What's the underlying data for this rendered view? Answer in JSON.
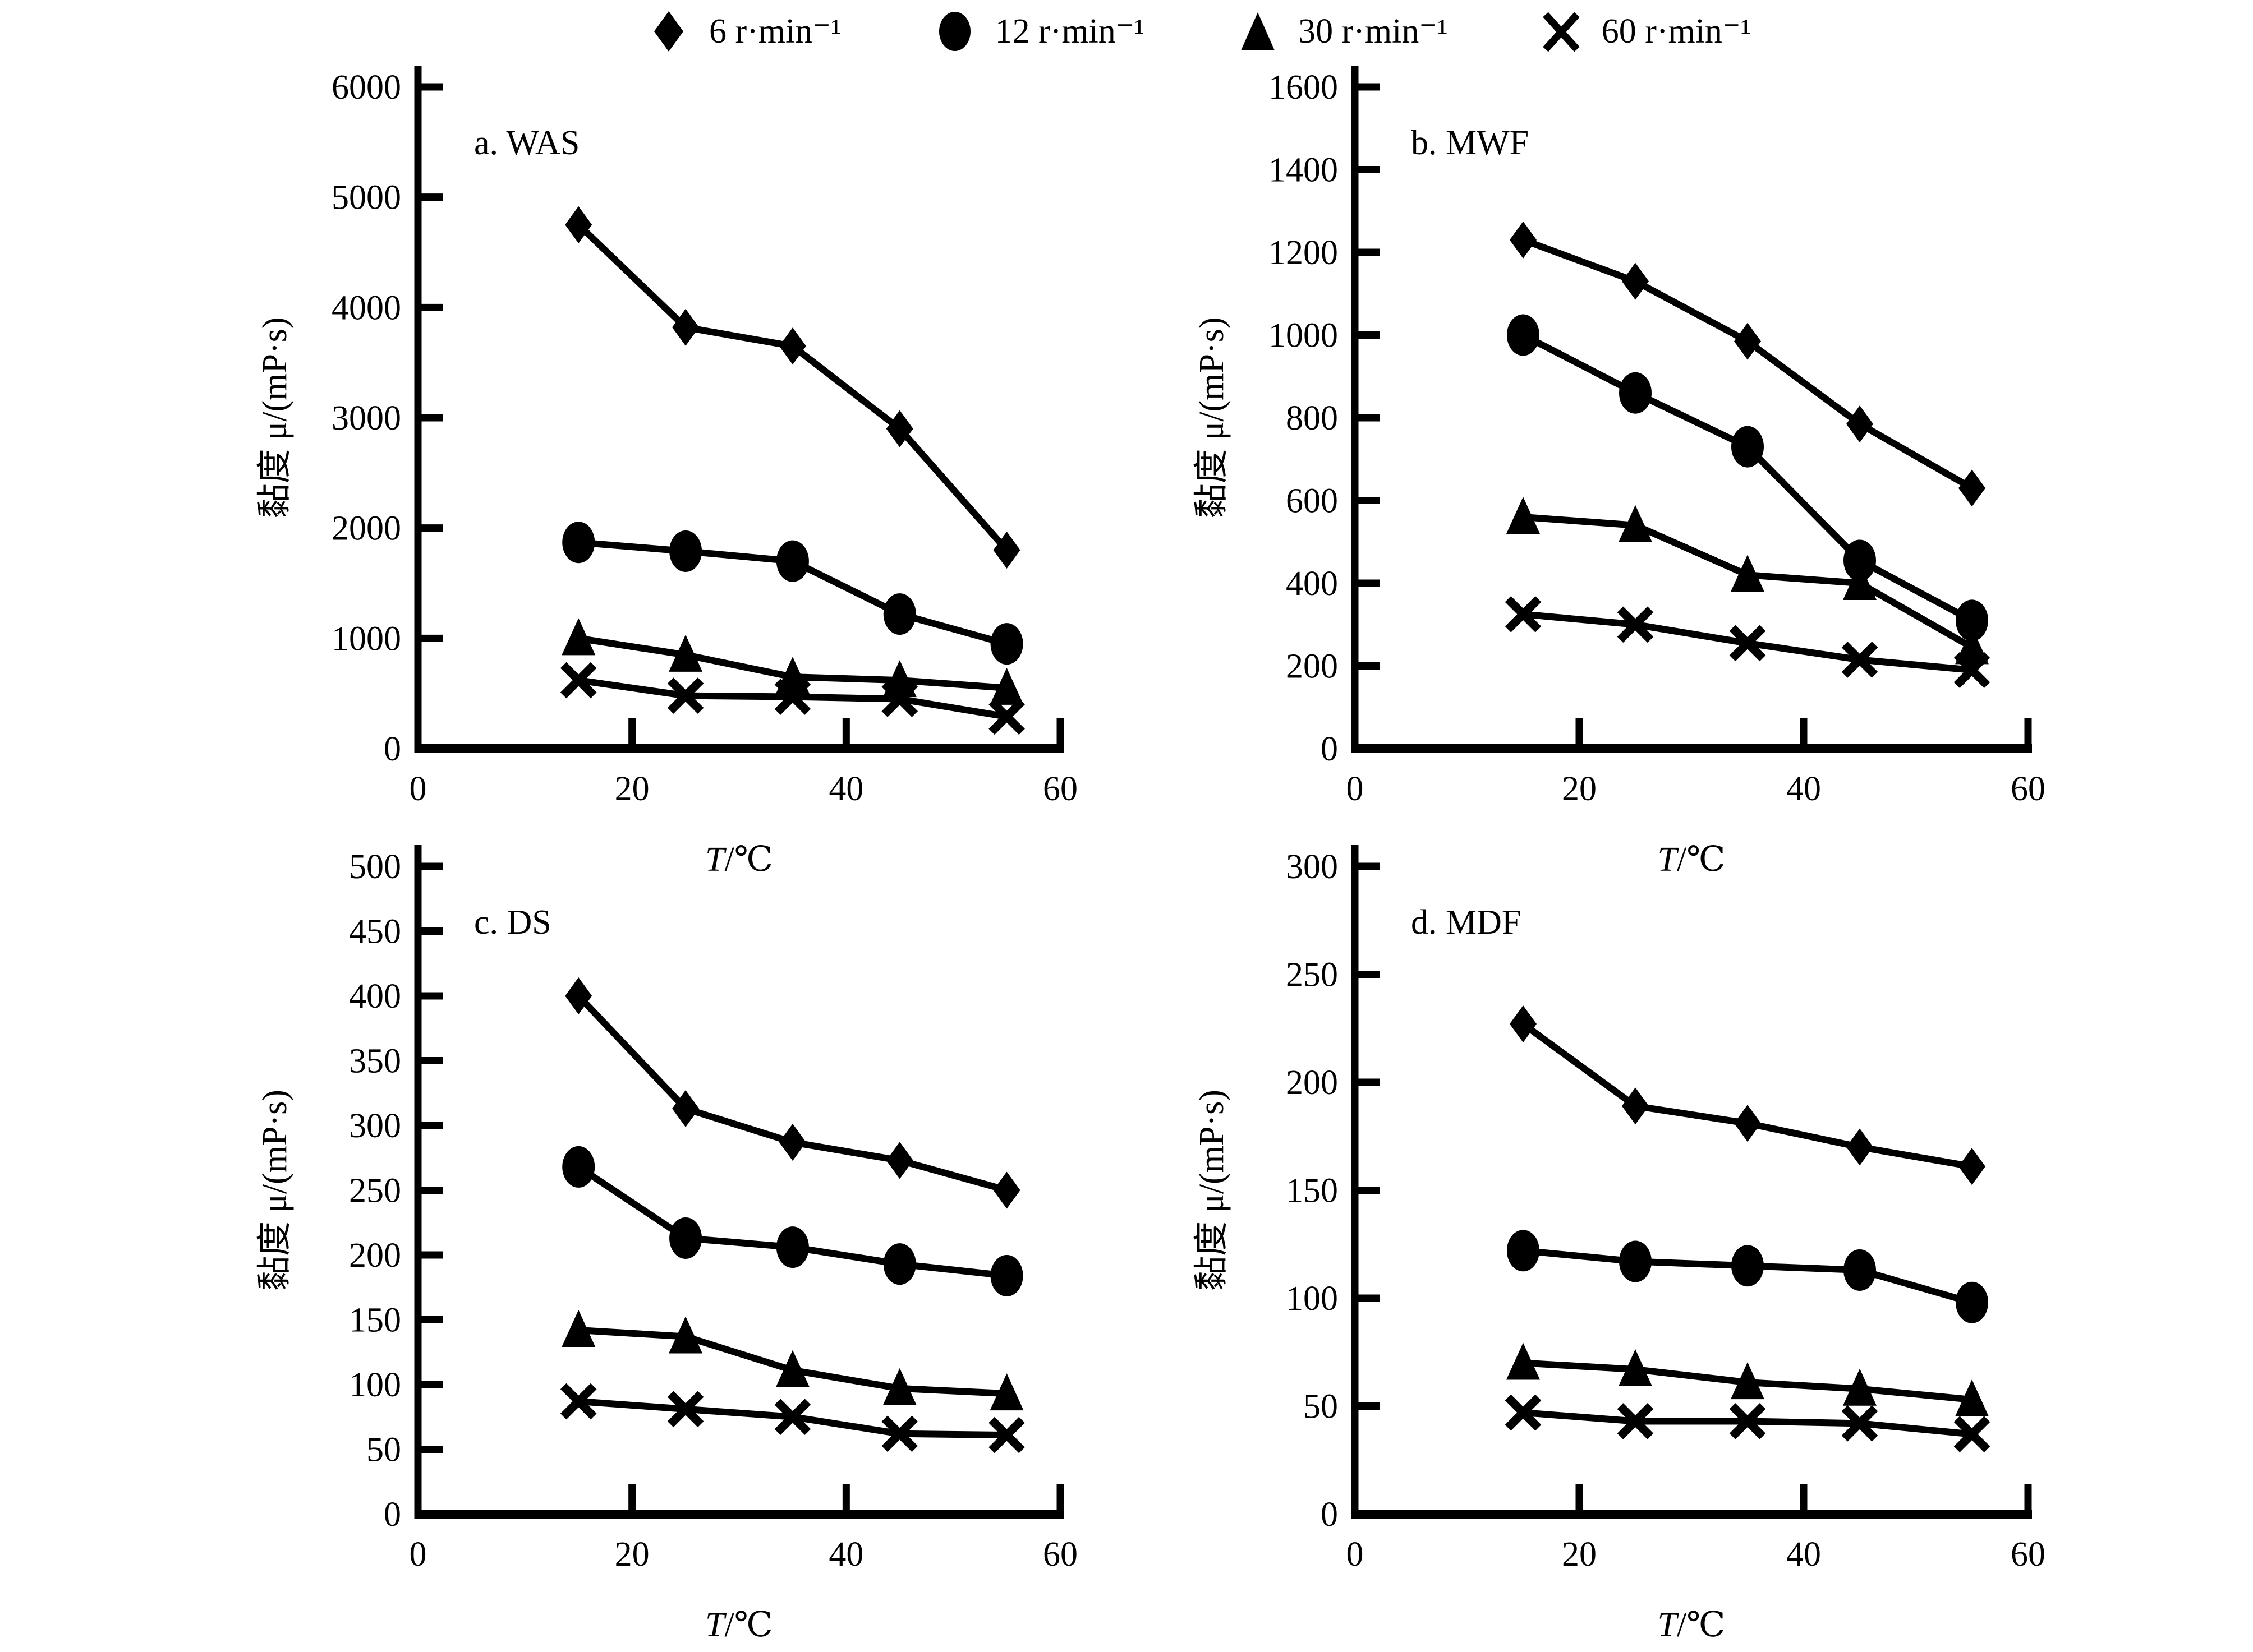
{
  "figure": {
    "background": "#ffffff",
    "ink_color": "#000000",
    "legend": {
      "items": [
        {
          "marker": "diamond",
          "label": "6 r·min⁻¹"
        },
        {
          "marker": "circle",
          "label": "12 r·min⁻¹"
        },
        {
          "marker": "triangle",
          "label": "30 r·min⁻¹"
        },
        {
          "marker": "x",
          "label": "60 r·min⁻¹"
        }
      ]
    }
  },
  "chart_data": [
    {
      "id": "a",
      "type": "line",
      "title": "a. WAS",
      "xlabel": "T/℃",
      "ylabel": "黏度 μ/(mP·s)",
      "x": [
        15,
        25,
        35,
        45,
        55
      ],
      "xlim": [
        0,
        60
      ],
      "xticks": [
        0,
        20,
        40,
        60
      ],
      "ylim": [
        0,
        6000
      ],
      "yticks": [
        0,
        1000,
        2000,
        3000,
        4000,
        5000,
        6000
      ],
      "grid": false,
      "legend_position": "shared-top",
      "series": [
        {
          "name": "6 r·min⁻¹",
          "marker": "diamond",
          "values": [
            4750,
            3820,
            3650,
            2900,
            1800
          ]
        },
        {
          "name": "12 r·min⁻¹",
          "marker": "circle",
          "values": [
            1870,
            1790,
            1700,
            1220,
            950
          ]
        },
        {
          "name": "30 r·min⁻¹",
          "marker": "triangle",
          "values": [
            1000,
            850,
            650,
            620,
            550
          ]
        },
        {
          "name": "60 r·min⁻¹",
          "marker": "x",
          "values": [
            620,
            480,
            470,
            450,
            290
          ]
        }
      ]
    },
    {
      "id": "b",
      "type": "line",
      "title": "b. MWF",
      "xlabel": "T/℃",
      "ylabel": "黏度 μ/(mP·s)",
      "x": [
        15,
        25,
        35,
        45,
        55
      ],
      "xlim": [
        0,
        60
      ],
      "xticks": [
        0,
        20,
        40,
        60
      ],
      "ylim": [
        0,
        1600
      ],
      "yticks": [
        0,
        200,
        400,
        600,
        800,
        1000,
        1200,
        1400,
        1600
      ],
      "grid": false,
      "legend_position": "shared-top",
      "series": [
        {
          "name": "6 r·min⁻¹",
          "marker": "diamond",
          "values": [
            1230,
            1130,
            985,
            785,
            630
          ]
        },
        {
          "name": "12 r·min⁻¹",
          "marker": "circle",
          "values": [
            1000,
            860,
            730,
            455,
            310
          ]
        },
        {
          "name": "30 r·min⁻¹",
          "marker": "triangle",
          "values": [
            560,
            540,
            420,
            400,
            245
          ]
        },
        {
          "name": "60 r·min⁻¹",
          "marker": "x",
          "values": [
            325,
            300,
            255,
            215,
            190
          ]
        }
      ]
    },
    {
      "id": "c",
      "type": "line",
      "title": "c. DS",
      "xlabel": "T/℃",
      "ylabel": "黏度 μ/(mP·s)",
      "x": [
        15,
        25,
        35,
        45,
        55
      ],
      "xlim": [
        0,
        60
      ],
      "xticks": [
        0,
        20,
        40,
        60
      ],
      "ylim": [
        0,
        500
      ],
      "yticks": [
        0,
        50,
        100,
        150,
        200,
        250,
        300,
        350,
        400,
        450,
        500
      ],
      "grid": false,
      "legend_position": "shared-top",
      "series": [
        {
          "name": "6 r·min⁻¹",
          "marker": "diamond",
          "values": [
            400,
            313,
            287,
            273,
            250
          ]
        },
        {
          "name": "12 r·min⁻¹",
          "marker": "circle",
          "values": [
            268,
            213,
            206,
            193,
            184
          ]
        },
        {
          "name": "30 r·min⁻¹",
          "marker": "triangle",
          "values": [
            142,
            137,
            111,
            97,
            93
          ]
        },
        {
          "name": "60 r·min⁻¹",
          "marker": "x",
          "values": [
            87,
            81,
            75,
            62,
            61
          ]
        }
      ]
    },
    {
      "id": "d",
      "type": "line",
      "title": "d. MDF",
      "xlabel": "T/℃",
      "ylabel": "黏度 μ/(mP·s)",
      "x": [
        15,
        25,
        35,
        45,
        55
      ],
      "xlim": [
        0,
        60
      ],
      "xticks": [
        0,
        20,
        40,
        60
      ],
      "ylim": [
        0,
        300
      ],
      "yticks": [
        0,
        50,
        100,
        150,
        200,
        250,
        300
      ],
      "grid": false,
      "legend_position": "shared-top",
      "series": [
        {
          "name": "6 r·min⁻¹",
          "marker": "diamond",
          "values": [
            227,
            189,
            181,
            170,
            161
          ]
        },
        {
          "name": "12 r·min⁻¹",
          "marker": "circle",
          "values": [
            122,
            117,
            115,
            113,
            98
          ]
        },
        {
          "name": "30 r·min⁻¹",
          "marker": "triangle",
          "values": [
            70,
            67,
            61,
            58,
            53
          ]
        },
        {
          "name": "60 r·min⁻¹",
          "marker": "x",
          "values": [
            47,
            43,
            43,
            42,
            37
          ]
        }
      ]
    }
  ]
}
